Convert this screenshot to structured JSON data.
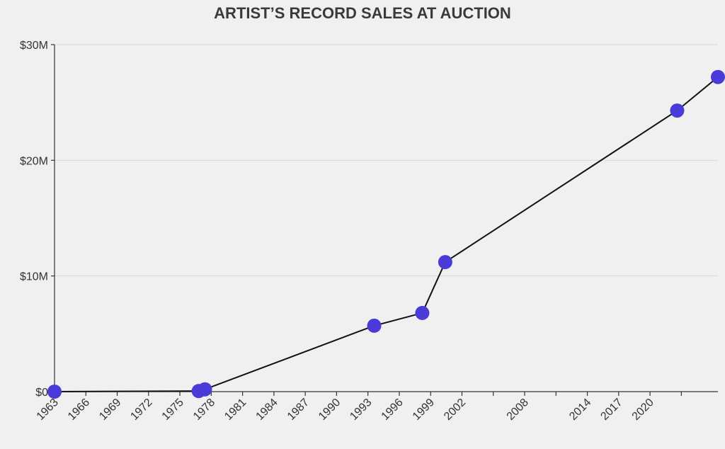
{
  "chart_data": {
    "type": "line",
    "title": "ARTIST’S RECORD SALES AT AUCTION",
    "xlabel": "",
    "ylabel": "",
    "xlim": [
      1963,
      2026.5
    ],
    "ylim": [
      0,
      30000000
    ],
    "grid": "horizontal",
    "legend": "none",
    "y_ticks": [
      {
        "value": 0,
        "label": "$0"
      },
      {
        "value": 10000000,
        "label": "$10M"
      },
      {
        "value": 20000000,
        "label": "$20M"
      },
      {
        "value": 30000000,
        "label": "$30M"
      }
    ],
    "x_ticks": [
      {
        "value": 1963,
        "label": "1963"
      },
      {
        "value": 1966,
        "label": "1966"
      },
      {
        "value": 1969,
        "label": "1969"
      },
      {
        "value": 1972,
        "label": "1972"
      },
      {
        "value": 1975,
        "label": "1975"
      },
      {
        "value": 1978,
        "label": "1978"
      },
      {
        "value": 1981,
        "label": "1981"
      },
      {
        "value": 1984,
        "label": "1984"
      },
      {
        "value": 1987,
        "label": "1987"
      },
      {
        "value": 1990,
        "label": "1990"
      },
      {
        "value": 1993,
        "label": "1993"
      },
      {
        "value": 1996,
        "label": "1996"
      },
      {
        "value": 1999,
        "label": "1999"
      },
      {
        "value": 2002,
        "label": "2002"
      },
      {
        "value": 2005,
        "label": ""
      },
      {
        "value": 2008,
        "label": "2008"
      },
      {
        "value": 2011,
        "label": ""
      },
      {
        "value": 2014,
        "label": "2014"
      },
      {
        "value": 2017,
        "label": "2017"
      },
      {
        "value": 2020,
        "label": "2020"
      },
      {
        "value": 2023,
        "label": ""
      }
    ],
    "series": [
      {
        "color": "#4a3ad8",
        "line_color": "#111111",
        "points": [
          {
            "x": 1963.0,
            "y": 0
          },
          {
            "x": 1976.8,
            "y": 50000
          },
          {
            "x": 1977.4,
            "y": 200000
          },
          {
            "x": 1993.6,
            "y": 5700000
          },
          {
            "x": 1998.2,
            "y": 6800000
          },
          {
            "x": 2000.4,
            "y": 11200000
          },
          {
            "x": 2022.6,
            "y": 24300000
          },
          {
            "x": 2026.5,
            "y": 27200000
          }
        ]
      }
    ]
  }
}
